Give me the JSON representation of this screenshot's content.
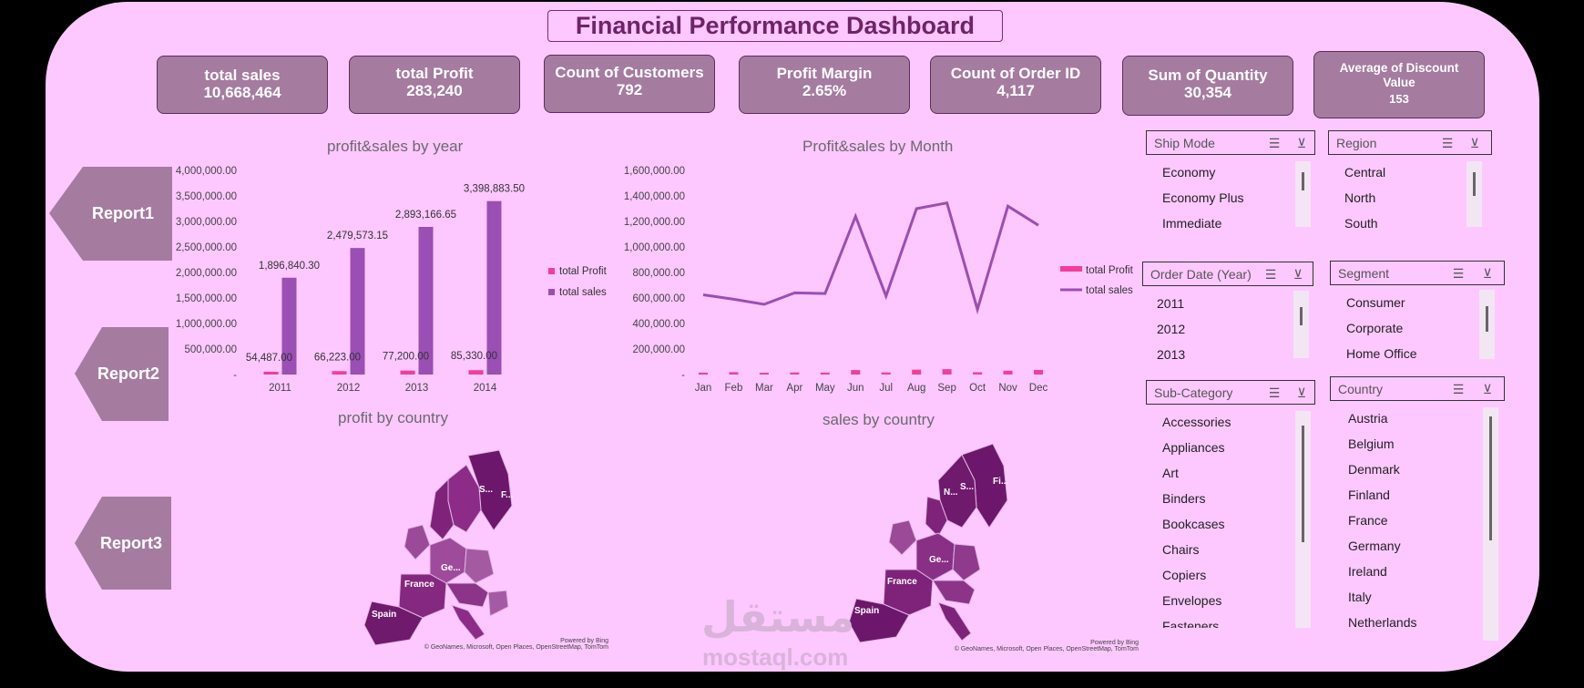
{
  "title": "Financial Performance Dashboard",
  "kpis": [
    {
      "label": "total sales",
      "value": "10,668,464"
    },
    {
      "label": "total Profit",
      "value": "283,240"
    },
    {
      "label": "Count of Customers",
      "value": "792"
    },
    {
      "label": "Profit Margin",
      "value": "2.65%"
    },
    {
      "label": "Count of Order ID",
      "value": "4,117"
    },
    {
      "label": "Sum of Quantity",
      "value": "30,354"
    },
    {
      "label": "Average of Discount Value",
      "value": "153"
    }
  ],
  "reports": [
    "Report1",
    "Report2",
    "Report3"
  ],
  "charts": {
    "year_title": "profit&sales by year",
    "month_title": "Profit&sales by Month",
    "profit_map_title": "profit by country",
    "sales_map_title": "sales by country",
    "legend_profit": "total Profit",
    "legend_sales": "total sales",
    "colors": {
      "profit": "#f23d9a",
      "sales": "#9a4fb4"
    }
  },
  "chart_data": [
    {
      "type": "bar",
      "title": "profit&sales by year",
      "categories": [
        "2011",
        "2012",
        "2013",
        "2014"
      ],
      "series": [
        {
          "name": "total Profit",
          "values": [
            54487.0,
            66223.0,
            77200.0,
            85330.0
          ],
          "labels": [
            "54,487.00",
            "66,223.00",
            "77,200.00",
            "85,330.00"
          ]
        },
        {
          "name": "total sales",
          "values": [
            1896840.3,
            2479573.15,
            2893166.65,
            3398883.5
          ],
          "labels": [
            "1,896,840.30",
            "2,479,573.15",
            "2,893,166.65",
            "3,398,883.50"
          ]
        }
      ],
      "yticks": [
        "4,000,000.00",
        "3,500,000.00",
        "3,000,000.00",
        "2,500,000.00",
        "2,000,000.00",
        "1,500,000.00",
        "1,000,000.00",
        "500,000.00",
        "-"
      ],
      "ylim": [
        0,
        4000000
      ],
      "legend": "right"
    },
    {
      "type": "line",
      "title": "Profit&sales by Month",
      "categories": [
        "Jan",
        "Feb",
        "Mar",
        "Apr",
        "May",
        "Jun",
        "Jul",
        "Aug",
        "Sep",
        "Oct",
        "Nov",
        "Dec"
      ],
      "series": [
        {
          "name": "total Profit",
          "values": [
            15000,
            18000,
            14000,
            16000,
            15000,
            35000,
            16000,
            38000,
            42000,
            18000,
            30000,
            36000
          ]
        },
        {
          "name": "total sales",
          "values": [
            625000,
            590000,
            550000,
            640000,
            635000,
            1240000,
            615000,
            1300000,
            1345000,
            510000,
            1320000,
            1170000
          ]
        }
      ],
      "yticks": [
        "1,600,000.00",
        "1,400,000.00",
        "1,200,000.00",
        "1,000,000.00",
        "800,000.00",
        "600,000.00",
        "400,000.00",
        "200,000.00",
        "-"
      ],
      "ylim": [
        0,
        1600000
      ],
      "legend": "right"
    }
  ],
  "maps": {
    "profit_labels": [
      "S...",
      "F...",
      "Ge...",
      "France",
      "Spain"
    ],
    "sales_labels": [
      "N...",
      "S...",
      "Fi...",
      "Ge...",
      "France",
      "Spain"
    ],
    "credit1": "Powered by Bing",
    "credit2": "© GeoNames, Microsoft, Open Places, OpenStreetMap, TomTom"
  },
  "slicers": {
    "ship_mode": {
      "title": "Ship Mode",
      "items": [
        "Economy",
        "Economy Plus",
        "Immediate"
      ]
    },
    "region": {
      "title": "Region",
      "items": [
        "Central",
        "North",
        "South"
      ]
    },
    "order_year": {
      "title": "Order Date (Year)",
      "items": [
        "2011",
        "2012",
        "2013"
      ]
    },
    "segment": {
      "title": "Segment",
      "items": [
        "Consumer",
        "Corporate",
        "Home Office"
      ]
    },
    "sub_category": {
      "title": "Sub-Category",
      "items": [
        "Accessories",
        "Appliances",
        "Art",
        "Binders",
        "Bookcases",
        "Chairs",
        "Copiers",
        "Envelopes",
        "Fasteners"
      ]
    },
    "country": {
      "title": "Country",
      "items": [
        "Austria",
        "Belgium",
        "Denmark",
        "Finland",
        "France",
        "Germany",
        "Ireland",
        "Italy",
        "Netherlands"
      ]
    }
  },
  "watermark": {
    "arabic": "مستقل",
    "latin": "mostaql.com"
  }
}
